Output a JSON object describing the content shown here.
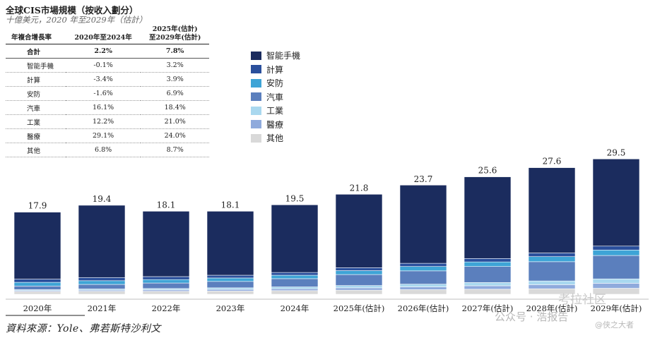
{
  "header": {
    "title": "全球CIS市場規模（按收入劃分）",
    "subtitle": "十億美元，2020 年至2029年（估計）"
  },
  "cagr_table": {
    "col_header": "年複合增長率",
    "col1": "2020年至2024年",
    "col2_line1": "2025年(估計)",
    "col2_line2": "至2029年(估計)",
    "rows": [
      {
        "name": "合計",
        "v1": "2.2%",
        "v2": "7.8%"
      },
      {
        "name": "智能手機",
        "v1": "-0.1%",
        "v2": "3.2%"
      },
      {
        "name": "計算",
        "v1": "-3.4%",
        "v2": "3.9%"
      },
      {
        "name": "安防",
        "v1": "-1.6%",
        "v2": "6.9%"
      },
      {
        "name": "汽車",
        "v1": "16.1%",
        "v2": "18.4%"
      },
      {
        "name": "工業",
        "v1": "12.2%",
        "v2": "21.0%"
      },
      {
        "name": "醫療",
        "v1": "29.1%",
        "v2": "24.0%"
      },
      {
        "name": "其他",
        "v1": "6.8%",
        "v2": "8.7%"
      }
    ]
  },
  "chart_data": {
    "type": "bar",
    "stacked": true,
    "categories": [
      "2020年",
      "2021年",
      "2022年",
      "2023年",
      "2024年",
      "2025年(估計)",
      "2026年(估計)",
      "2027年(估計)",
      "2028年(估計)",
      "2029年(估計)"
    ],
    "totals": [
      17.9,
      19.4,
      18.1,
      18.1,
      19.5,
      21.8,
      23.7,
      25.6,
      27.6,
      29.5
    ],
    "series": [
      {
        "name": "其他",
        "color": "#d9d9d9",
        "values": [
          0.6,
          0.65,
          0.65,
          0.7,
          0.8,
          0.9,
          1.0,
          1.1,
          1.2,
          1.3
        ]
      },
      {
        "name": "醫療",
        "color": "#8faadc",
        "values": [
          0.2,
          0.25,
          0.3,
          0.35,
          0.4,
          0.5,
          0.6,
          0.75,
          0.9,
          1.1
        ]
      },
      {
        "name": "工業",
        "color": "#a9d8ef",
        "values": [
          0.2,
          0.25,
          0.3,
          0.35,
          0.4,
          0.5,
          0.6,
          0.7,
          0.8,
          0.95
        ]
      },
      {
        "name": "汽車",
        "color": "#5b7fbd",
        "values": [
          0.8,
          1.0,
          1.2,
          1.4,
          1.8,
          2.4,
          2.9,
          3.5,
          4.2,
          5.1
        ]
      },
      {
        "name": "安防",
        "color": "#3ea4d6",
        "values": [
          0.8,
          0.8,
          0.75,
          0.75,
          0.75,
          0.85,
          0.95,
          1.0,
          1.1,
          1.2
        ]
      },
      {
        "name": "計算",
        "color": "#2a4f9c",
        "values": [
          0.7,
          0.7,
          0.65,
          0.6,
          0.6,
          0.65,
          0.7,
          0.75,
          0.8,
          0.85
        ]
      },
      {
        "name": "智能手機",
        "color": "#1b2c5e",
        "values": [
          14.6,
          15.75,
          14.25,
          13.95,
          14.75,
          16.0,
          17.05,
          17.8,
          18.6,
          19.0
        ]
      }
    ],
    "legend_position": "right of table, top"
  },
  "footer": {
    "source": "資料來源：Yole、弗若斯特沙利文"
  },
  "watermark": {
    "brand": "考拉社区",
    "account": "公众号 · 浩报告",
    "handle": "@侠之大者"
  }
}
